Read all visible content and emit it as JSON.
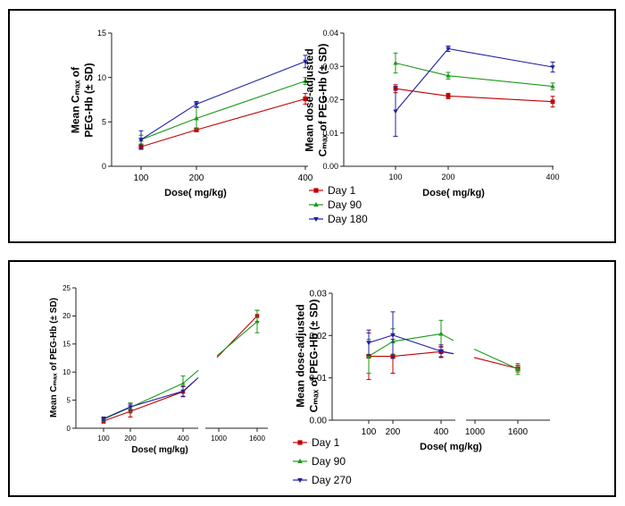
{
  "chart_data": [
    {
      "type": "line",
      "ylabel_lines": [
        "Mean Cₘₐₓ of",
        "PEG-Hb (± SD)"
      ],
      "xlabel": "Dose( mg/kg)",
      "x": [
        100,
        200,
        400
      ],
      "ylim": [
        0,
        15
      ],
      "yticks": [
        "0",
        "5",
        "10",
        "15"
      ],
      "xticks": [
        "100",
        "200",
        "400"
      ],
      "series": [
        {
          "name": "Day 1",
          "color": "#c00000",
          "marker": "square",
          "values": [
            2.2,
            4.1,
            7.6
          ],
          "sd": [
            0.3,
            0.2,
            0.6
          ]
        },
        {
          "name": "Day 90",
          "color": "#1a9a1a",
          "marker": "triangle",
          "values": [
            3.0,
            5.4,
            9.6
          ],
          "sd": [
            0.5,
            1.2,
            0.4
          ]
        },
        {
          "name": "Day 180",
          "color": "#2020a0",
          "marker": "invtriangle",
          "values": [
            3.0,
            7.0,
            11.8
          ],
          "sd": [
            1.0,
            0.3,
            0.7
          ]
        }
      ]
    },
    {
      "type": "line",
      "ylabel_lines": [
        "Mean dose-adjusted",
        "Cₘₐₓ of PEG-Hb (± SD)"
      ],
      "xlabel": "Dose( mg/kg)",
      "x": [
        100,
        200,
        400
      ],
      "ylim": [
        0,
        0.04
      ],
      "yticks": [
        "0.00",
        "0.01",
        "0.02",
        "0.03",
        "0.04"
      ],
      "xticks": [
        "100",
        "200",
        "400"
      ],
      "series": [
        {
          "name": "Day 1",
          "color": "#c00000",
          "marker": "square",
          "values": [
            0.0233,
            0.0211,
            0.0194
          ],
          "sd": [
            0.0012,
            0.0008,
            0.0016
          ]
        },
        {
          "name": "Day 90",
          "color": "#1a9a1a",
          "marker": "triangle",
          "values": [
            0.031,
            0.0272,
            0.024
          ],
          "sd": [
            0.003,
            0.001,
            0.001
          ]
        },
        {
          "name": "Day 180",
          "color": "#2020a0",
          "marker": "invtriangle",
          "values": [
            0.0165,
            0.0353,
            0.0298
          ],
          "sd": [
            0.0075,
            0.0008,
            0.0015
          ]
        }
      ]
    },
    {
      "type": "line",
      "ylabel_lines": [
        "Mean Cₘₐₓ of PEG-Hb (± SD)"
      ],
      "xlabel": "Dose( mg/kg)",
      "x": [
        100,
        200,
        400,
        1600
      ],
      "ylim": [
        0,
        25
      ],
      "yticks": [
        "0",
        "5",
        "10",
        "15",
        "20",
        "25"
      ],
      "xticks": [
        "100",
        "200",
        "400",
        "1000",
        "1600"
      ],
      "axis_break": true,
      "series": [
        {
          "name": "Day 1",
          "color": "#c00000",
          "marker": "square",
          "values": [
            1.3,
            3.0,
            6.5,
            20.0
          ],
          "sd": [
            0.4,
            1.0,
            0.9,
            1.0
          ]
        },
        {
          "name": "Day 90",
          "color": "#1a9a1a",
          "marker": "triangle",
          "values": [
            1.6,
            3.7,
            8.0,
            19.0
          ],
          "sd": [
            0.3,
            0.8,
            1.3,
            2.0
          ]
        },
        {
          "name": "Day 270",
          "color": "#2020a0",
          "marker": "invtriangle",
          "values": [
            1.7,
            3.8,
            6.6,
            null
          ],
          "sd": [
            0.3,
            0.5,
            0.9,
            null
          ]
        }
      ]
    },
    {
      "type": "line",
      "ylabel_lines": [
        "Mean dose-adjusted",
        "Cₘₐₓ of PEG-Hb (± SD)"
      ],
      "xlabel": "Dose( mg/kg)",
      "x": [
        100,
        200,
        400,
        1600
      ],
      "ylim": [
        0,
        0.03
      ],
      "yticks": [
        "0.00",
        "0.01",
        "0.02",
        "0.03"
      ],
      "xticks": [
        "100",
        "200",
        "400",
        "1000",
        "1600"
      ],
      "axis_break": true,
      "series": [
        {
          "name": "Day 1",
          "color": "#c00000",
          "marker": "square",
          "values": [
            0.0151,
            0.0151,
            0.0162,
            0.0122
          ],
          "sd": [
            0.0055,
            0.004,
            0.0012,
            0.0008
          ]
        },
        {
          "name": "Day 90",
          "color": "#1a9a1a",
          "marker": "triangle",
          "values": [
            0.0151,
            0.0186,
            0.0204,
            0.0121
          ],
          "sd": [
            0.004,
            0.003,
            0.0032,
            0.0013
          ]
        },
        {
          "name": "Day 270",
          "color": "#2020a0",
          "marker": "invtriangle",
          "values": [
            0.0183,
            0.0201,
            0.0163,
            null
          ],
          "sd": [
            0.003,
            0.0055,
            0.0015,
            null
          ]
        }
      ]
    }
  ],
  "legends": [
    {
      "entries": [
        {
          "label": "Day 1",
          "color": "#c00000",
          "marker": "square"
        },
        {
          "label": "Day 90",
          "color": "#1a9a1a",
          "marker": "triangle"
        },
        {
          "label": "Day 180",
          "color": "#2020a0",
          "marker": "invtriangle"
        }
      ]
    },
    {
      "entries": [
        {
          "label": "Day 1",
          "color": "#c00000",
          "marker": "square"
        },
        {
          "label": "Day 90",
          "color": "#1a9a1a",
          "marker": "triangle"
        },
        {
          "label": "Day 270",
          "color": "#2020a0",
          "marker": "invtriangle"
        }
      ]
    }
  ]
}
